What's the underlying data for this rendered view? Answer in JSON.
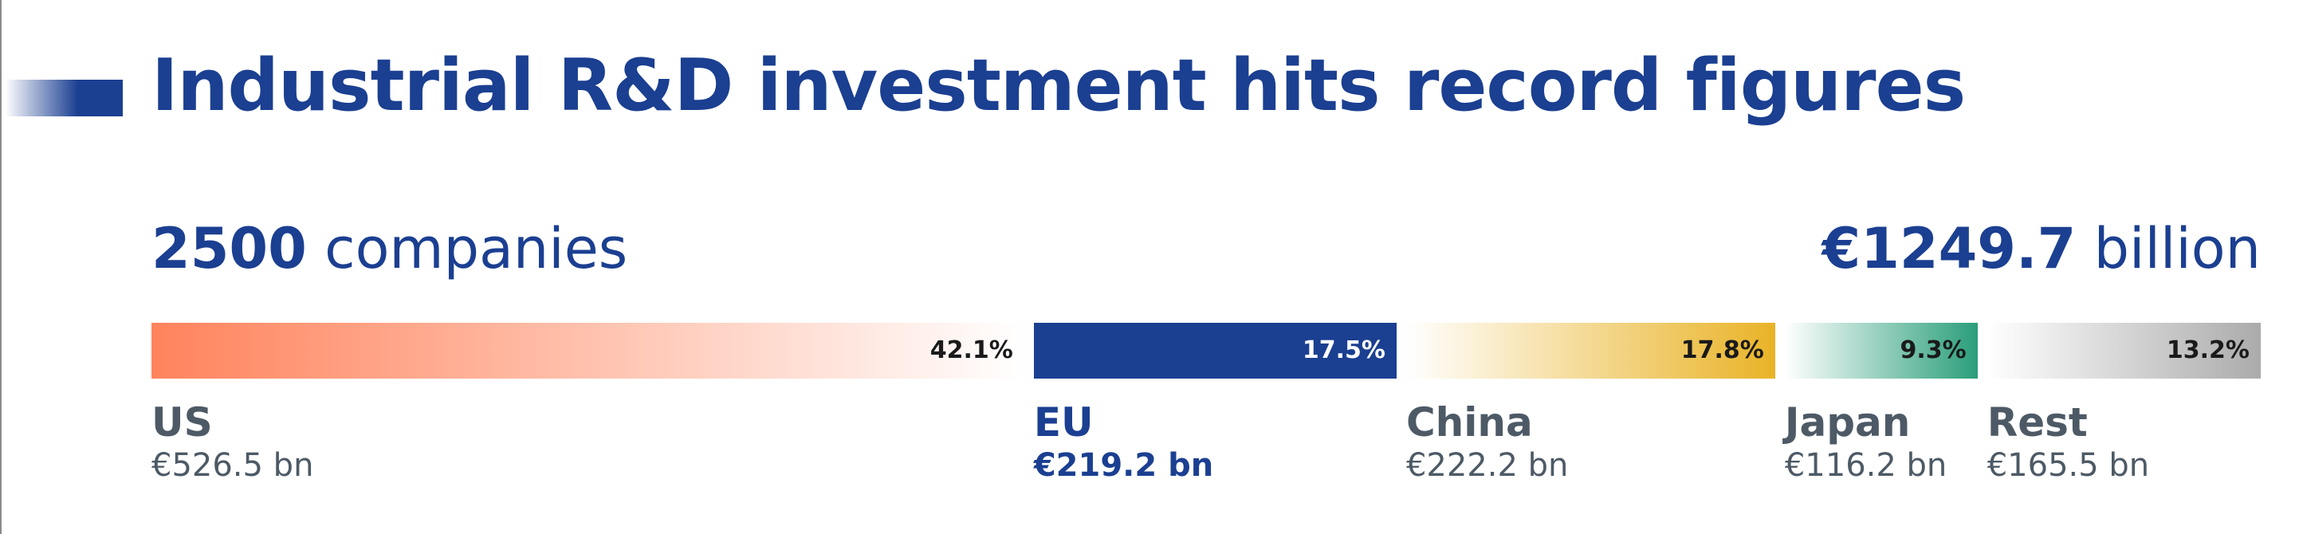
{
  "title": "Industrial R&D investment hits record figures",
  "summary": {
    "companies_count": "2500",
    "companies_label": "companies",
    "total_amount": "€1249.7",
    "total_unit": "billion"
  },
  "colors": {
    "title": "#1b3f91",
    "us": "#ff835c",
    "eu": "#1b3f91",
    "china": "#e9b327",
    "japan": "#2a9e7a",
    "rest": "#ababab",
    "label_gray": "#4d5a66"
  },
  "chart_data": {
    "type": "bar",
    "orientation": "horizontal-stacked",
    "categories": [
      "US",
      "EU",
      "China",
      "Japan",
      "Rest"
    ],
    "values": [
      42.1,
      17.5,
      17.8,
      9.3,
      13.2
    ],
    "value_labels": [
      "42.1%",
      "17.5%",
      "17.8%",
      "9.3%",
      "13.2%"
    ],
    "amounts": [
      "€526.5 bn",
      "€219.2 bn",
      "€222.2 bn",
      "€116.2 bn",
      "€165.5 bn"
    ],
    "title": "Industrial R&D investment hits record figures"
  }
}
